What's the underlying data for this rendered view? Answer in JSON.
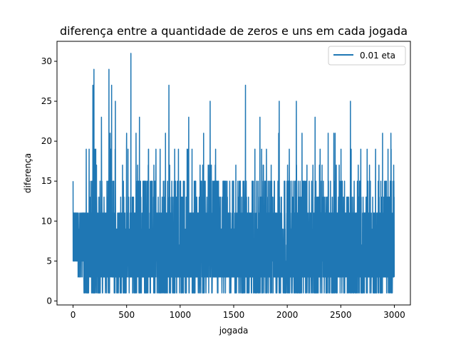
{
  "chart_data": {
    "type": "line",
    "title": "diferença entre a quantidade de zeros e uns em cada jogada",
    "xlabel": "jogada",
    "ylabel": "diferença",
    "xlim": [
      -150,
      3150
    ],
    "ylim": [
      -0.5,
      32.5
    ],
    "xticks": [
      0,
      500,
      1000,
      1500,
      2000,
      2500,
      3000
    ],
    "yticks": [
      0,
      5,
      10,
      15,
      20,
      25,
      30
    ],
    "legend_position": "top-right",
    "grid": false,
    "series": [
      {
        "name": "0.01 eta",
        "color": "#1f77b4",
        "n_points": 3000,
        "value_min": 1,
        "value_max": 31,
        "peaks": [
          {
            "x": 0,
            "y": 15
          },
          {
            "x": 20,
            "y": 11
          },
          {
            "x": 150,
            "y": 19
          },
          {
            "x": 185,
            "y": 27
          },
          {
            "x": 195,
            "y": 29
          },
          {
            "x": 265,
            "y": 23
          },
          {
            "x": 335,
            "y": 29
          },
          {
            "x": 360,
            "y": 27
          },
          {
            "x": 395,
            "y": 25
          },
          {
            "x": 540,
            "y": 31
          },
          {
            "x": 620,
            "y": 23
          },
          {
            "x": 895,
            "y": 27
          },
          {
            "x": 1080,
            "y": 23
          },
          {
            "x": 1280,
            "y": 25
          },
          {
            "x": 1610,
            "y": 27
          },
          {
            "x": 1745,
            "y": 23
          },
          {
            "x": 1925,
            "y": 25
          },
          {
            "x": 2085,
            "y": 25
          },
          {
            "x": 2260,
            "y": 23
          },
          {
            "x": 2590,
            "y": 25
          },
          {
            "x": 2890,
            "y": 21
          },
          {
            "x": 2990,
            "y": 15
          }
        ]
      }
    ]
  }
}
